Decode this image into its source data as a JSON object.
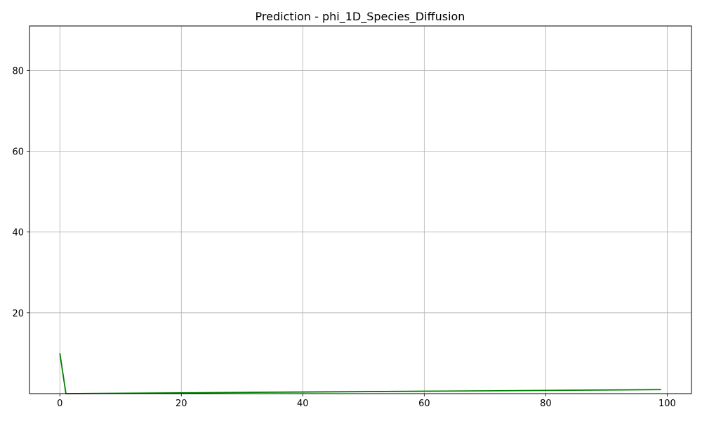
{
  "chart_data": {
    "type": "line",
    "title": "Prediction - phi_1D_Species_Diffusion",
    "xlabel": "",
    "ylabel": "",
    "xlim": [
      -5,
      104
    ],
    "ylim": [
      0,
      91
    ],
    "xticks": [
      0,
      20,
      40,
      60,
      80,
      100
    ],
    "yticks": [
      20,
      40,
      60,
      80
    ],
    "grid": true,
    "series": [
      {
        "color": "#008000",
        "x": [
          0,
          1,
          20,
          40,
          60,
          80,
          99
        ],
        "y": [
          10.0,
          0.0,
          0.2,
          0.4,
          0.6,
          0.8,
          1.0
        ]
      }
    ]
  }
}
